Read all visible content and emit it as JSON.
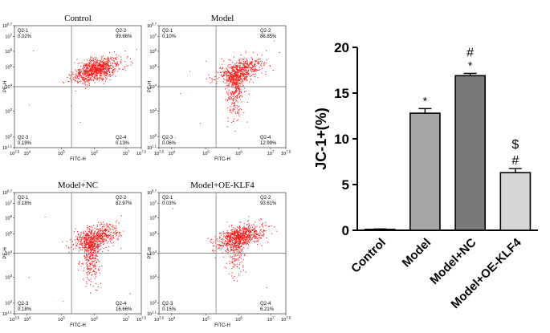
{
  "flow_panels": [
    {
      "title": "Control",
      "quadrants": {
        "q1": {
          "label": "Q2-1",
          "value": "0.02%"
        },
        "q2": {
          "label": "Q2-2",
          "value": "99.66%"
        },
        "q3": {
          "label": "Q2-3",
          "value": "0.19%"
        },
        "q4": {
          "label": "Q2-4",
          "value": "0.13%"
        }
      },
      "xlabel": "FITC-H",
      "ylabel": "PE-H",
      "seed": 11
    },
    {
      "title": "Model",
      "quadrants": {
        "q1": {
          "label": "Q2-1",
          "value": "0.10%"
        },
        "q2": {
          "label": "Q2-2",
          "value": "86.85%"
        },
        "q3": {
          "label": "Q2-3",
          "value": "0.06%"
        },
        "q4": {
          "label": "Q2-4",
          "value": "12.99%"
        }
      },
      "xlabel": "FITC-H",
      "ylabel": "PE-H",
      "seed": 23
    },
    {
      "title": "Model+NC",
      "quadrants": {
        "q1": {
          "label": "Q2-1",
          "value": "0.18%"
        },
        "q2": {
          "label": "Q2-2",
          "value": "82.97%"
        },
        "q3": {
          "label": "Q2-3",
          "value": "0.18%"
        },
        "q4": {
          "label": "Q2-4",
          "value": "16.66%"
        }
      },
      "xlabel": "FITC-H",
      "ylabel": "PE-H",
      "seed": 37
    },
    {
      "title": "Model+OE-KLF4",
      "quadrants": {
        "q1": {
          "label": "Q2-1",
          "value": "0.03%"
        },
        "q2": {
          "label": "Q2-2",
          "value": "93.61%"
        },
        "q3": {
          "label": "Q2-3",
          "value": "0.15%"
        },
        "q4": {
          "label": "Q2-4",
          "value": "6.21%"
        }
      },
      "xlabel": "FITC-H",
      "ylabel": "PE-H",
      "seed": 53
    }
  ],
  "flow_axis": {
    "x_ticks": [
      "10^3.5",
      "10^4",
      "10^5",
      "10^6",
      "10^7",
      "10^7.5"
    ],
    "y_ticks": [
      "10^1.1",
      "10^2",
      "10^3",
      "10^4",
      "10^5",
      "10^6",
      "10^7",
      "10^8.7"
    ]
  },
  "colors": {
    "dots": "#ff1a1a",
    "gate": "#888888"
  },
  "chart_data": {
    "type": "bar",
    "categories": [
      "Control",
      "Model",
      "Model+NC",
      "Model+OE-KLF4"
    ],
    "values": [
      0.1,
      12.8,
      16.9,
      6.3
    ],
    "errors": [
      0.05,
      0.5,
      0.25,
      0.45
    ],
    "bar_colors": [
      "#ffffff",
      "#a6a6a6",
      "#7a7a7a",
      "#d6d6d6"
    ],
    "significance": [
      [],
      [
        "*"
      ],
      [
        "*",
        "#"
      ],
      [
        "#",
        "$"
      ]
    ],
    "ylabel": "JC-1+(%)",
    "ylim": [
      0,
      20
    ],
    "yticks": [
      0,
      5,
      10,
      15,
      20
    ]
  }
}
